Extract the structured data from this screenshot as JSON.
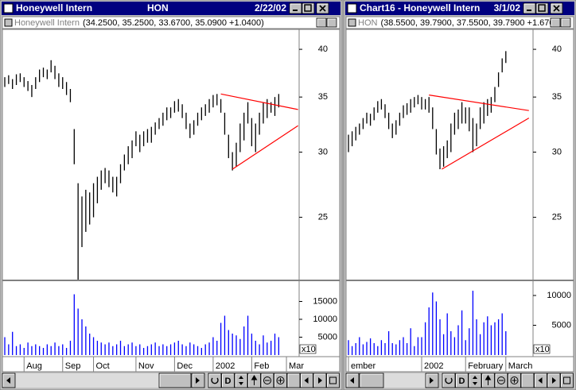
{
  "windows": [
    {
      "title": "Honeywell Intern",
      "symbol": "HON",
      "date": "2/22/02",
      "pane_title": "Honeywell Intern",
      "quote": "(34.2500, 35.2500, 33.6700, 35.0900 +1.0400)",
      "button_label": "D"
    },
    {
      "title": "Chart16 - Honeywell Intern",
      "date": "3/1/02",
      "pane_title": "HON",
      "quote": "(38.5500, 39.7900, 37.5500, 39.7900 +1.670",
      "button_label": "D"
    }
  ],
  "chart_data": [
    {
      "type": "hilo",
      "color": "#000000",
      "log": true,
      "ylim": [
        21,
        42.2
      ],
      "yticks": [
        25,
        30,
        35,
        40
      ],
      "high": [
        37.0,
        37.2,
        36.8,
        37.3,
        37.4,
        37.0,
        36.6,
        36.2,
        37.0,
        37.8,
        38.0,
        37.8,
        38.8,
        38.2,
        37.4,
        37.0,
        36.5,
        35.8,
        32.0,
        27.5,
        26.5,
        27.0,
        26.8,
        27.5,
        28.0,
        28.5,
        28.7,
        28.5,
        28.0,
        28.0,
        29.0,
        29.8,
        30.5,
        31.0,
        31.8,
        31.5,
        31.8,
        32.0,
        32.2,
        32.6,
        33.0,
        33.5,
        34.0,
        34.0,
        34.6,
        34.8,
        34.3,
        33.5,
        32.5,
        32.8,
        33.5,
        34.0,
        34.3,
        34.8,
        35.2,
        35.3,
        34.8,
        33.5,
        31.5,
        30.0,
        30.8,
        32.5,
        33.5,
        34.5,
        33.0,
        32.5,
        33.5,
        34.5,
        34.8,
        34.5,
        35.0,
        35.3,
        null,
        null
      ],
      "low": [
        36.0,
        36.3,
        35.8,
        36.2,
        36.5,
        36.0,
        35.6,
        35.0,
        35.8,
        36.5,
        37.0,
        36.8,
        37.5,
        36.8,
        36.0,
        35.8,
        35.2,
        34.5,
        29.0,
        21.0,
        23.0,
        24.0,
        24.5,
        25.0,
        26.0,
        27.0,
        27.5,
        27.2,
        26.8,
        26.5,
        27.5,
        28.5,
        29.0,
        29.5,
        30.5,
        30.0,
        30.5,
        30.8,
        30.8,
        31.5,
        32.0,
        32.3,
        32.8,
        33.0,
        33.5,
        33.6,
        33.0,
        32.0,
        31.2,
        31.5,
        32.3,
        32.8,
        33.2,
        33.5,
        34.0,
        34.2,
        33.5,
        31.5,
        29.5,
        28.5,
        28.8,
        30.0,
        31.0,
        32.5,
        30.5,
        30.0,
        31.5,
        32.5,
        33.0,
        33.5,
        33.2,
        34.0,
        null,
        null
      ],
      "trendlines": [
        {
          "color": "#ff0000",
          "x": [
            56,
            76
          ],
          "y": [
            35.3,
            33.8
          ]
        },
        {
          "color": "#ff0000",
          "x": [
            59,
            76
          ],
          "y": [
            28.6,
            32.3
          ]
        }
      ]
    },
    {
      "type": "bar",
      "color": "#0000ff",
      "ylim": [
        0,
        20000
      ],
      "yticks": [
        5000,
        10000,
        15000
      ],
      "unit_label": "x10",
      "categories": [
        null,
        null,
        null,
        null,
        null,
        "Aug",
        null,
        null,
        null,
        null,
        null,
        null,
        null,
        null,
        null,
        "Sep",
        null,
        null,
        null,
        null,
        null,
        null,
        null,
        "Oct",
        null,
        null,
        null,
        null,
        null,
        null,
        null,
        null,
        null,
        null,
        "Nov",
        null,
        null,
        null,
        null,
        null,
        null,
        null,
        null,
        null,
        "Dec",
        null,
        null,
        null,
        null,
        null,
        null,
        null,
        null,
        null,
        "2002",
        null,
        null,
        null,
        null,
        null,
        null,
        null,
        null,
        null,
        "Feb",
        null,
        null,
        null,
        null,
        null,
        null,
        null,
        null,
        "Mar"
      ],
      "values": [
        5000,
        3000,
        6500,
        2500,
        3000,
        2000,
        3500,
        2500,
        3000,
        2500,
        2000,
        3000,
        2500,
        3500,
        2500,
        3000,
        2000,
        4000,
        17000,
        13000,
        10000,
        8000,
        6000,
        5000,
        4000,
        3500,
        3000,
        3500,
        2500,
        3000,
        4000,
        2500,
        3000,
        3500,
        2500,
        3000,
        2000,
        2500,
        3000,
        3500,
        2500,
        3000,
        2500,
        3000,
        3500,
        4000,
        3000,
        2500,
        3500,
        3000,
        2500,
        2000,
        3000,
        3500,
        5000,
        4000,
        9000,
        11000,
        7000,
        6000,
        5500,
        4500,
        8000,
        11000,
        6000,
        4000,
        3000,
        5500,
        3500,
        4000,
        6000,
        5000,
        null,
        null
      ]
    },
    {
      "type": "hilo",
      "color": "#000000",
      "log": true,
      "ylim": [
        21,
        42.2
      ],
      "yticks": [
        25,
        30,
        35,
        40
      ],
      "high": [
        31.5,
        31.8,
        32.2,
        32.5,
        33.0,
        33.5,
        33.4,
        34.0,
        34.6,
        34.8,
        34.3,
        33.5,
        32.5,
        32.8,
        33.5,
        34.2,
        34.4,
        34.8,
        35.0,
        35.2,
        35.0,
        34.8,
        35.0,
        34.0,
        32.0,
        30.3,
        30.5,
        31.0,
        32.5,
        33.5,
        33.8,
        34.5,
        34.0,
        34.0,
        33.0,
        32.5,
        34.0,
        34.5,
        34.8,
        35.0,
        36.0,
        37.5,
        39.0,
        39.8
      ],
      "low": [
        30.0,
        30.5,
        31.0,
        31.5,
        32.0,
        32.5,
        32.3,
        32.8,
        33.5,
        33.8,
        33.0,
        32.0,
        31.2,
        31.5,
        32.3,
        33.0,
        33.3,
        33.5,
        34.0,
        34.3,
        33.8,
        33.8,
        33.5,
        32.0,
        29.8,
        28.6,
        28.8,
        29.5,
        30.0,
        31.5,
        32.0,
        32.5,
        32.5,
        31.8,
        30.0,
        30.5,
        32.0,
        32.5,
        33.2,
        33.5,
        34.5,
        36.0,
        37.5,
        38.5
      ],
      "trendlines": [
        {
          "color": "#ff0000",
          "x": [
            22,
            49.3
          ],
          "y": [
            35.2,
            33.7
          ]
        },
        {
          "color": "#ff0000",
          "x": [
            25.5,
            49.3
          ],
          "y": [
            28.6,
            33.0
          ]
        }
      ]
    },
    {
      "type": "bar",
      "color": "#0000ff",
      "ylim": [
        0,
        12000
      ],
      "yticks": [
        5000,
        10000
      ],
      "unit_label": "x10",
      "categories": [
        "ember",
        null,
        null,
        null,
        null,
        null,
        null,
        null,
        null,
        null,
        null,
        null,
        null,
        null,
        null,
        null,
        null,
        null,
        null,
        null,
        "2002",
        null,
        null,
        null,
        null,
        null,
        null,
        null,
        null,
        null,
        null,
        null,
        "February",
        null,
        null,
        null,
        null,
        null,
        null,
        null,
        null,
        null,
        null,
        "March"
      ],
      "values": [
        2500,
        1500,
        2000,
        3000,
        1800,
        2200,
        2800,
        2000,
        1500,
        2500,
        2000,
        4000,
        2000,
        1800,
        2500,
        3000,
        2000,
        4500,
        1500,
        3000,
        3000,
        5500,
        8000,
        10500,
        9000,
        6000,
        3500,
        7000,
        4000,
        3000,
        5000,
        7500,
        2500,
        4500,
        10800,
        6000,
        3500,
        5500,
        6500,
        5000,
        5500,
        6000,
        7000,
        4000
      ]
    }
  ]
}
